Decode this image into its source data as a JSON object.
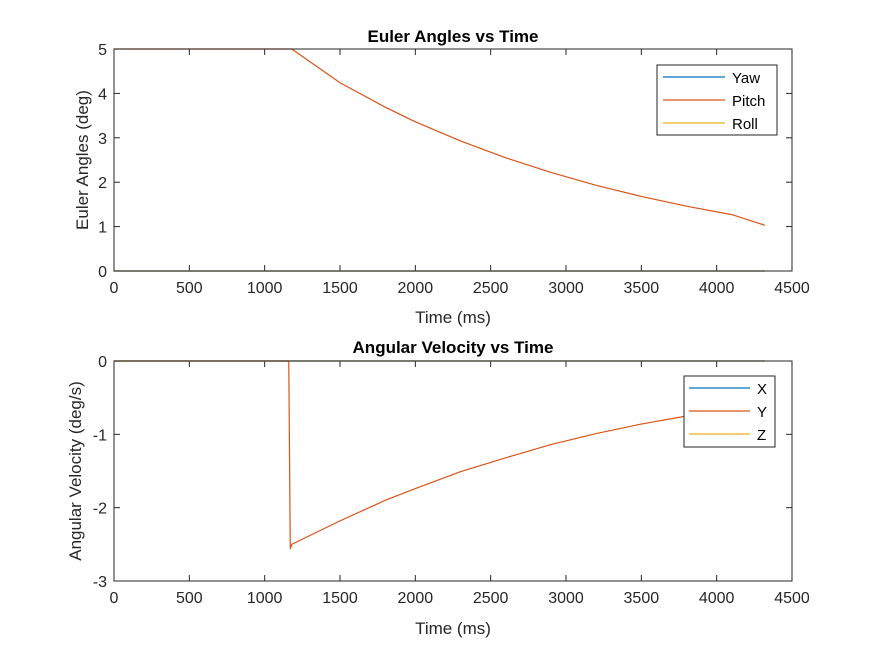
{
  "figure": {
    "background": "#ffffff"
  },
  "chart_data": [
    {
      "type": "line",
      "title": "Euler Angles vs Time",
      "xlabel": "Time (ms)",
      "ylabel": "Euler Angles (deg)",
      "xlim": [
        0,
        4500
      ],
      "ylim": [
        0,
        5
      ],
      "xticks": [
        0,
        500,
        1000,
        1500,
        2000,
        2500,
        3000,
        3500,
        4000,
        4500
      ],
      "yticks": [
        0,
        1,
        2,
        3,
        4,
        5
      ],
      "grid": false,
      "legend_position": "top-right",
      "series": [
        {
          "name": "Yaw",
          "color": "#0072bd",
          "x": [
            0,
            4320
          ],
          "y": [
            0,
            0
          ]
        },
        {
          "name": "Pitch",
          "color": "#d95319",
          "x": [
            0,
            1000,
            1180,
            1500,
            1800,
            2000,
            2300,
            2600,
            2900,
            3200,
            3500,
            3800,
            4100,
            4320
          ],
          "y": [
            5,
            5,
            5,
            4.24,
            3.69,
            3.36,
            2.93,
            2.55,
            2.22,
            1.93,
            1.68,
            1.46,
            1.27,
            1.03
          ]
        },
        {
          "name": "Roll",
          "color": "#edb120",
          "x": [
            0,
            4320
          ],
          "y": [
            0,
            0
          ]
        }
      ]
    },
    {
      "type": "line",
      "title": "Angular Velocity vs Time",
      "xlabel": "Time (ms)",
      "ylabel": "Angular Velocity (deg/s)",
      "xlim": [
        0,
        4500
      ],
      "ylim": [
        -3,
        0
      ],
      "xticks": [
        0,
        500,
        1000,
        1500,
        2000,
        2500,
        3000,
        3500,
        4000,
        4500
      ],
      "yticks": [
        -3,
        -2,
        -1,
        0
      ],
      "grid": false,
      "legend_position": "top-right",
      "series": [
        {
          "name": "X",
          "color": "#0072bd",
          "x": [
            0,
            4320
          ],
          "y": [
            0,
            0
          ]
        },
        {
          "name": "Y",
          "color": "#d95319",
          "x": [
            0,
            1000,
            1160,
            1170,
            1180,
            1200,
            1500,
            1800,
            2000,
            2300,
            2600,
            2900,
            3200,
            3500,
            3800,
            4100,
            4320
          ],
          "y": [
            0,
            0,
            0,
            -2.56,
            -2.5,
            -2.48,
            -2.18,
            -1.9,
            -1.74,
            -1.51,
            -1.32,
            -1.14,
            -0.99,
            -0.86,
            -0.75,
            -0.65,
            -0.6
          ]
        },
        {
          "name": "Z",
          "color": "#edb120",
          "x": [
            0,
            4320
          ],
          "y": [
            0,
            0
          ]
        }
      ]
    }
  ]
}
